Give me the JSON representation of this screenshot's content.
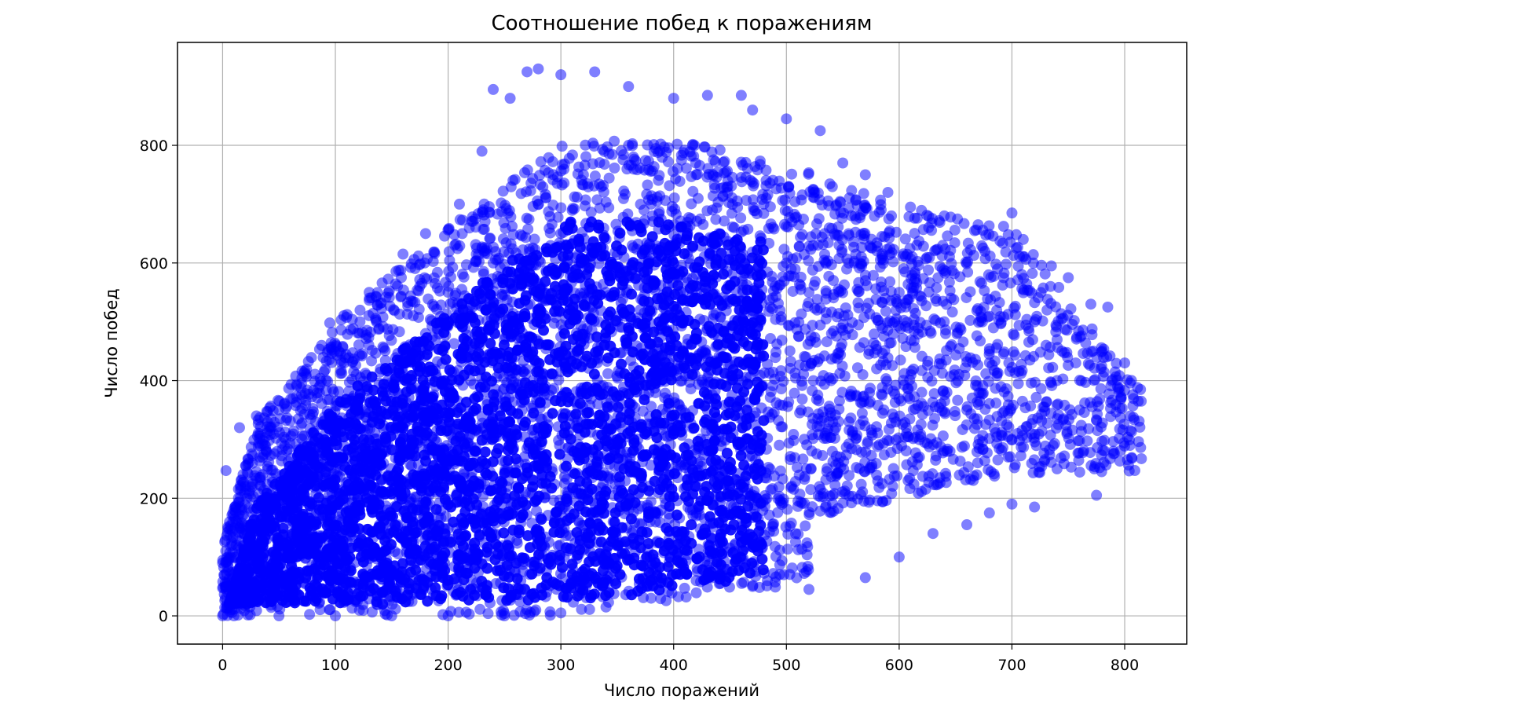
{
  "chart_data": {
    "type": "scatter",
    "title": "Соотношение побед к поражениям",
    "xlabel": "Число поражений",
    "ylabel": "Число побед",
    "xlim": [
      -40,
      855
    ],
    "ylim": [
      -48,
      975
    ],
    "xticks": [
      0,
      100,
      200,
      300,
      400,
      500,
      600,
      700,
      800
    ],
    "yticks": [
      0,
      200,
      400,
      600,
      800
    ],
    "grid": true,
    "legend": "none",
    "marker_color": "#0000ff",
    "marker_alpha": 0.5,
    "series": [
      {
        "points": [
          [
            0,
            0
          ],
          [
            3,
            247
          ],
          [
            15,
            320
          ],
          [
            30,
            340
          ],
          [
            50,
            350
          ],
          [
            70,
            395
          ],
          [
            95,
            498
          ],
          [
            130,
            550
          ],
          [
            160,
            615
          ],
          [
            180,
            650
          ],
          [
            210,
            700
          ],
          [
            230,
            790
          ],
          [
            240,
            895
          ],
          [
            255,
            880
          ],
          [
            270,
            925
          ],
          [
            280,
            930
          ],
          [
            300,
            920
          ],
          [
            330,
            925
          ],
          [
            360,
            900
          ],
          [
            400,
            880
          ],
          [
            430,
            885
          ],
          [
            460,
            885
          ],
          [
            470,
            860
          ],
          [
            500,
            845
          ],
          [
            530,
            825
          ],
          [
            550,
            770
          ],
          [
            570,
            750
          ],
          [
            590,
            720
          ],
          [
            610,
            695
          ],
          [
            640,
            680
          ],
          [
            670,
            665
          ],
          [
            700,
            685
          ],
          [
            710,
            640
          ],
          [
            735,
            595
          ],
          [
            750,
            575
          ],
          [
            770,
            530
          ],
          [
            785,
            525
          ],
          [
            800,
            430
          ],
          [
            812,
            365
          ],
          [
            805,
            315
          ],
          [
            790,
            280
          ],
          [
            775,
            205
          ],
          [
            740,
            250
          ],
          [
            720,
            185
          ],
          [
            700,
            190
          ],
          [
            680,
            175
          ],
          [
            660,
            155
          ],
          [
            630,
            140
          ],
          [
            600,
            100
          ],
          [
            570,
            65
          ],
          [
            520,
            45
          ],
          [
            470,
            50
          ],
          [
            420,
            60
          ],
          [
            380,
            30
          ],
          [
            340,
            15
          ],
          [
            300,
            5
          ],
          [
            250,
            0
          ],
          [
            200,
            0
          ],
          [
            150,
            0
          ],
          [
            100,
            0
          ],
          [
            50,
            0
          ],
          [
            10,
            0
          ],
          [
            5,
            100
          ],
          [
            10,
            180
          ],
          [
            20,
            220
          ],
          [
            40,
            150
          ],
          [
            60,
            200
          ],
          [
            80,
            300
          ],
          [
            100,
            250
          ],
          [
            120,
            350
          ],
          [
            140,
            420
          ],
          [
            160,
            300
          ],
          [
            180,
            480
          ],
          [
            200,
            550
          ],
          [
            220,
            400
          ],
          [
            240,
            600
          ],
          [
            260,
            500
          ],
          [
            280,
            700
          ],
          [
            300,
            650
          ],
          [
            320,
            750
          ],
          [
            340,
            550
          ],
          [
            360,
            800
          ],
          [
            380,
            700
          ],
          [
            400,
            600
          ],
          [
            420,
            750
          ],
          [
            440,
            650
          ],
          [
            460,
            500
          ],
          [
            480,
            700
          ],
          [
            500,
            600
          ],
          [
            520,
            550
          ],
          [
            540,
            480
          ],
          [
            560,
            600
          ],
          [
            580,
            420
          ],
          [
            600,
            550
          ],
          [
            620,
            380
          ],
          [
            640,
            500
          ],
          [
            660,
            350
          ],
          [
            680,
            450
          ],
          [
            700,
            300
          ],
          [
            720,
            500
          ],
          [
            740,
            400
          ],
          [
            760,
            350
          ],
          [
            780,
            450
          ],
          [
            795,
            380
          ]
        ]
      }
    ]
  }
}
